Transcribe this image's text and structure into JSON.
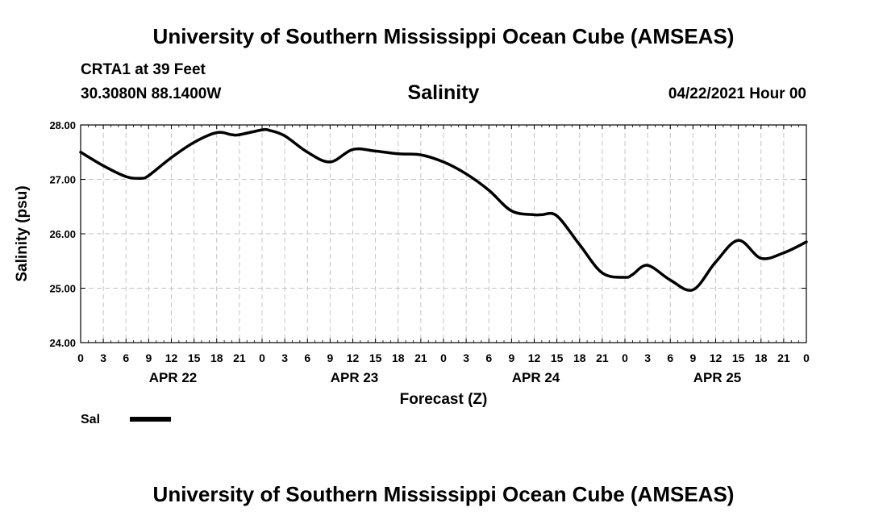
{
  "header": {
    "title": "University of Southern Mississippi Ocean Cube (AMSEAS)",
    "station": "CRTA1 at 39 Feet",
    "coords": "30.3080N  88.1400W",
    "chart_title": "Salinity",
    "datetime": "04/22/2021 Hour 00"
  },
  "footer": {
    "title": "University of Southern Mississippi Ocean Cube (AMSEAS)"
  },
  "chart_data": {
    "type": "line",
    "title": "Salinity",
    "xlabel": "Forecast (Z)",
    "ylabel": "Salinity (psu)",
    "ylim": [
      24.0,
      28.0
    ],
    "xlim": [
      0,
      96
    ],
    "grid": true,
    "y_ticks": [
      "24.00",
      "25.00",
      "26.00",
      "27.00",
      "28.00"
    ],
    "y_tick_values": [
      24,
      25,
      26,
      27,
      28
    ],
    "x_ticks": [
      0,
      3,
      6,
      9,
      12,
      15,
      18,
      21,
      24,
      27,
      30,
      33,
      36,
      39,
      42,
      45,
      48,
      51,
      54,
      57,
      60,
      63,
      66,
      69,
      72,
      75,
      78,
      81,
      84,
      87,
      90,
      93,
      96
    ],
    "x_tick_labels": [
      "0",
      "3",
      "6",
      "9",
      "12",
      "15",
      "18",
      "21",
      "0",
      "3",
      "6",
      "9",
      "12",
      "15",
      "18",
      "21",
      "0",
      "3",
      "6",
      "9",
      "12",
      "15",
      "18",
      "21",
      "0",
      "3",
      "6",
      "9",
      "12",
      "15",
      "18",
      "21",
      "0"
    ],
    "day_labels": [
      {
        "hour": 12,
        "label": "APR 22"
      },
      {
        "hour": 36,
        "label": "APR 23"
      },
      {
        "hour": 60,
        "label": "APR 24"
      },
      {
        "hour": 84,
        "label": "APR 25"
      }
    ],
    "legend": [
      {
        "name": "Sal",
        "color": "#000000"
      }
    ],
    "legend_placement": "bottom-left",
    "series": [
      {
        "name": "Sal",
        "color": "#000000",
        "x": [
          0,
          3,
          6,
          8,
          9,
          12,
          15,
          18,
          20,
          21,
          24,
          25,
          27,
          30,
          33,
          36,
          39,
          42,
          45,
          48,
          51,
          54,
          57,
          60,
          61,
          63,
          66,
          69,
          72,
          73,
          75,
          78,
          81,
          84,
          87,
          90,
          93,
          96
        ],
        "values": [
          27.5,
          27.25,
          27.05,
          27.02,
          27.07,
          27.4,
          27.68,
          27.86,
          27.82,
          27.82,
          27.91,
          27.9,
          27.8,
          27.5,
          27.32,
          27.55,
          27.52,
          27.47,
          27.45,
          27.32,
          27.1,
          26.8,
          26.42,
          26.35,
          26.35,
          26.33,
          25.8,
          25.28,
          25.2,
          25.25,
          25.42,
          25.15,
          24.97,
          25.48,
          25.88,
          25.55,
          25.65,
          25.85
        ]
      }
    ]
  }
}
